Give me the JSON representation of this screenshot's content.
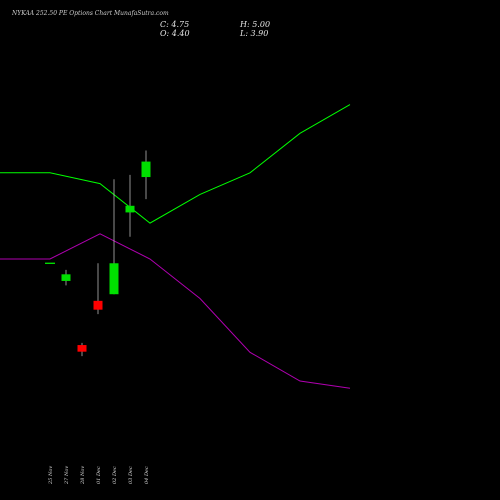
{
  "header": {
    "title": "NYKAA 252.50  PE Options  Chart MunafaSutra.com",
    "close_label": "C: 4.75",
    "high_label": "H: 5.00",
    "open_label": "O: 4.40",
    "low_label": "L: 3.90"
  },
  "colors": {
    "background": "#000000",
    "bullish": "#00e000",
    "bearish": "#ff0000",
    "green_line": "#00ff00",
    "magenta_line": "#b000b0",
    "neutral_tick": "#00ff00"
  },
  "chart_data": {
    "type": "candlestick",
    "dates": [
      "25 Nov",
      "27 Nov",
      "28 Nov",
      "01 Dec",
      "02 Dec",
      "03 Dec",
      "04 Dec"
    ],
    "ohlc": [
      {
        "date": "25 Nov",
        "open": 2.45,
        "high": 2.45,
        "low": 2.45,
        "close": 2.45
      },
      {
        "date": "27 Nov",
        "open": 2.05,
        "high": 2.3,
        "low": 1.95,
        "close": 2.2
      },
      {
        "date": "28 Nov",
        "open": 0.6,
        "high": 0.65,
        "low": 0.35,
        "close": 0.45
      },
      {
        "date": "01 Dec",
        "open": 1.6,
        "high": 2.45,
        "low": 1.3,
        "close": 1.4
      },
      {
        "date": "02 Dec",
        "open": 1.75,
        "high": 4.35,
        "low": 1.75,
        "close": 2.45
      },
      {
        "date": "03 Dec",
        "open": 3.6,
        "high": 4.45,
        "low": 3.05,
        "close": 3.75
      },
      {
        "date": "04 Dec",
        "open": 4.4,
        "high": 5.0,
        "low": 3.9,
        "close": 4.75
      }
    ],
    "y_range": [
      -2.0,
      7.5
    ],
    "upper_line": {
      "x": [
        "21 Nov",
        "25 Nov",
        "28 Nov",
        "03 Dec",
        "08 Dec",
        "11 Dec",
        "15 Dec",
        "20 Dec"
      ],
      "values": [
        19.3,
        19.3,
        19.0,
        17.9,
        18.7,
        19.3,
        20.4,
        21.2
      ]
    },
    "lower_line": {
      "x": [
        "21 Nov",
        "25 Nov",
        "28 Nov",
        "03 Dec",
        "08 Dec",
        "11 Dec",
        "15 Dec",
        "20 Dec"
      ],
      "values": [
        16.9,
        16.9,
        17.6,
        16.9,
        15.8,
        14.3,
        13.5,
        13.3
      ]
    },
    "line_y_range": [
      11.3,
      23.0
    ]
  }
}
